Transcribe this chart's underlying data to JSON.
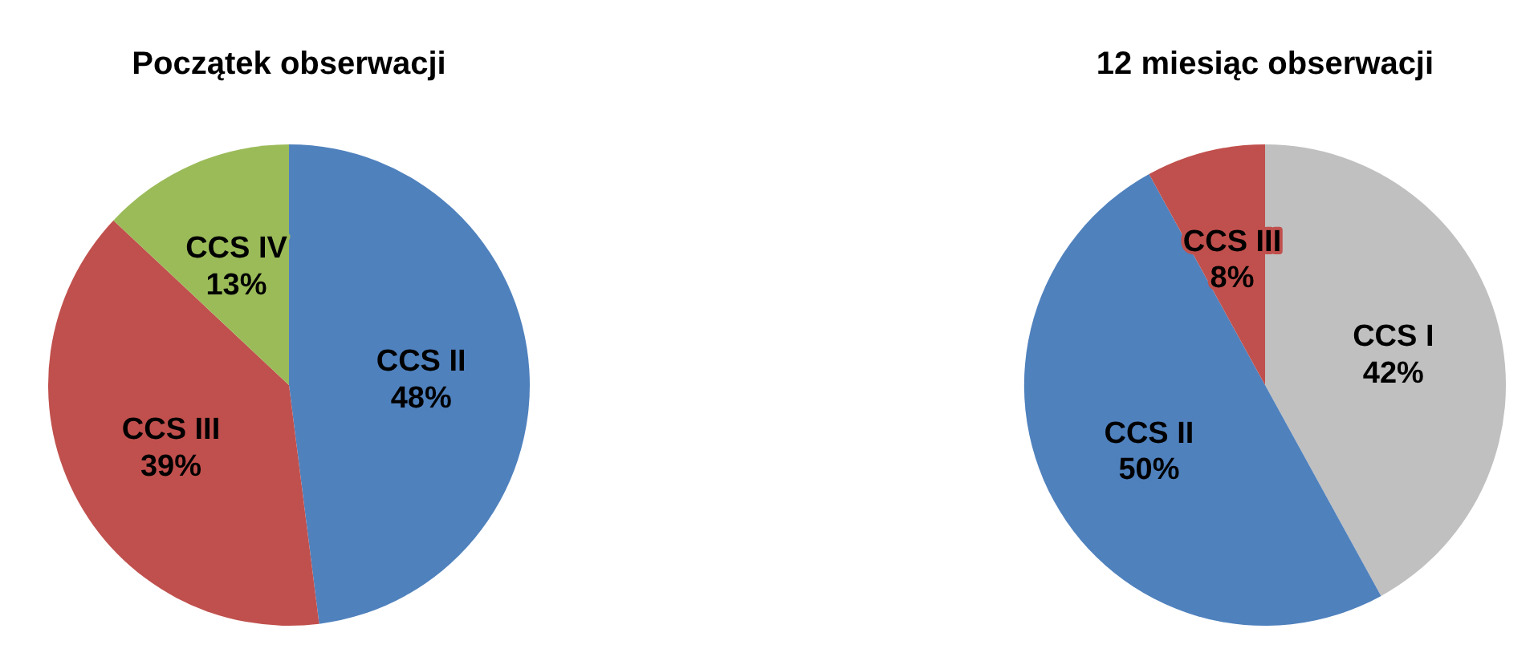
{
  "chart_data": [
    {
      "type": "pie",
      "title": "Początek obserwacji",
      "categories": [
        "CCS II",
        "CCS III",
        "CCS IV"
      ],
      "values": [
        48,
        39,
        13
      ],
      "colors": [
        "#4f81bd",
        "#c0504d",
        "#9bbb59"
      ],
      "value_labels": [
        "48%",
        "39%",
        "13%"
      ]
    },
    {
      "type": "pie",
      "title": "12 miesiąc obserwacji",
      "categories": [
        "CCS I",
        "CCS II",
        "CCS III"
      ],
      "values": [
        42,
        50,
        8
      ],
      "colors": [
        "#c0c0c0",
        "#4f81bd",
        "#c0504d"
      ],
      "value_labels": [
        "42%",
        "50%",
        "8%"
      ]
    }
  ]
}
